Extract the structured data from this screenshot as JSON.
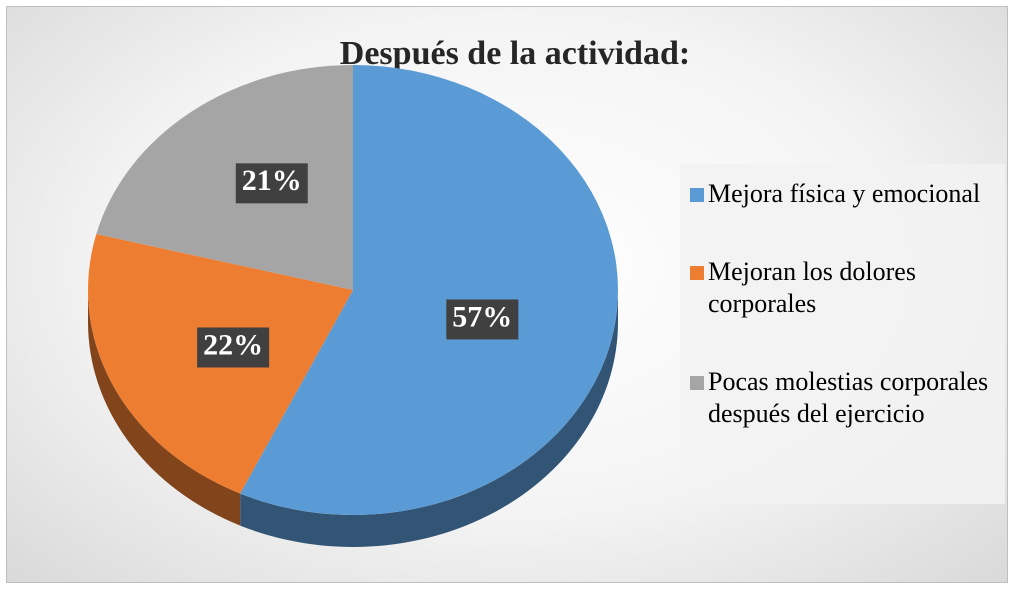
{
  "chart_data": {
    "type": "pie",
    "title": "Después de la actividad:",
    "categories": [
      "Mejora física y emocional",
      "Mejoran los dolores corporales",
      "Pocas molestias corporales después del ejercicio"
    ],
    "values": [
      57,
      22,
      21
    ],
    "value_labels": [
      "57%",
      "22%",
      "21%"
    ],
    "colors": [
      "#5b9bd5",
      "#ed7d31",
      "#a5a5a5"
    ],
    "legend": "right"
  }
}
